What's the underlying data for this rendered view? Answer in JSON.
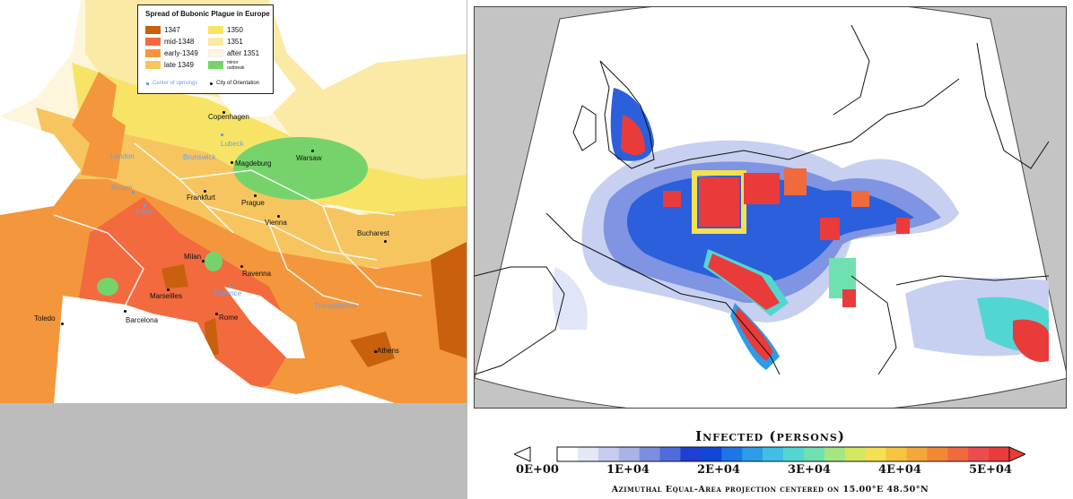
{
  "plague_map": {
    "legend_title": "Spread of Bubonic Plague in Europe",
    "legend": [
      {
        "label": "1347",
        "color": "#c9600e"
      },
      {
        "label": "mid-1348",
        "color": "#f26a3e"
      },
      {
        "label": "early-1349",
        "color": "#f4963c"
      },
      {
        "label": "late 1349",
        "color": "#f7c55f"
      },
      {
        "label": "1350",
        "color": "#f7e467"
      },
      {
        "label": "1351",
        "color": "#faeaa5"
      },
      {
        "label": "after 1351",
        "color": "#fdf6dd"
      },
      {
        "label": "minor outbreak",
        "color": "#76d36c"
      }
    ],
    "marker_legend": {
      "center": "Center of uprisings",
      "city": "City of Orientation"
    },
    "cities": [
      "Copenhagen",
      "Magdeburg",
      "Warsaw",
      "Frankfurt",
      "Prague",
      "Vienna",
      "Bucharest",
      "Milan",
      "Ravenna",
      "Marseilles",
      "Rome",
      "Toledo",
      "Barcelona",
      "Athens"
    ],
    "centers": [
      "Lubeck",
      "London",
      "Brunswick",
      "Rouen",
      "Paris",
      "Florence",
      "Thessalonica"
    ]
  },
  "sim_map": {
    "colorbar_title": "Infected (persons)",
    "colorbar_ticks": [
      "0E+00",
      "1E+04",
      "2E+04",
      "3E+04",
      "4E+04",
      "5E+04"
    ],
    "colorbar_colors": [
      "#ffffff",
      "#e4e8f6",
      "#c6ccee",
      "#a9b3e8",
      "#7b8ee0",
      "#4f6bdc",
      "#1e3fd2",
      "#0f46d8",
      "#1c76e6",
      "#2c9cea",
      "#3fbfe6",
      "#52d6d2",
      "#6fe0b0",
      "#a4e682",
      "#d4e85e",
      "#f4e050",
      "#f6c43e",
      "#f4a83a",
      "#f28836",
      "#f06a3c",
      "#ec4c4e",
      "#ea3b3b"
    ],
    "projection_note": "Azimuthal Equal-Area projection centered on 15.00°E 48.50°N"
  }
}
